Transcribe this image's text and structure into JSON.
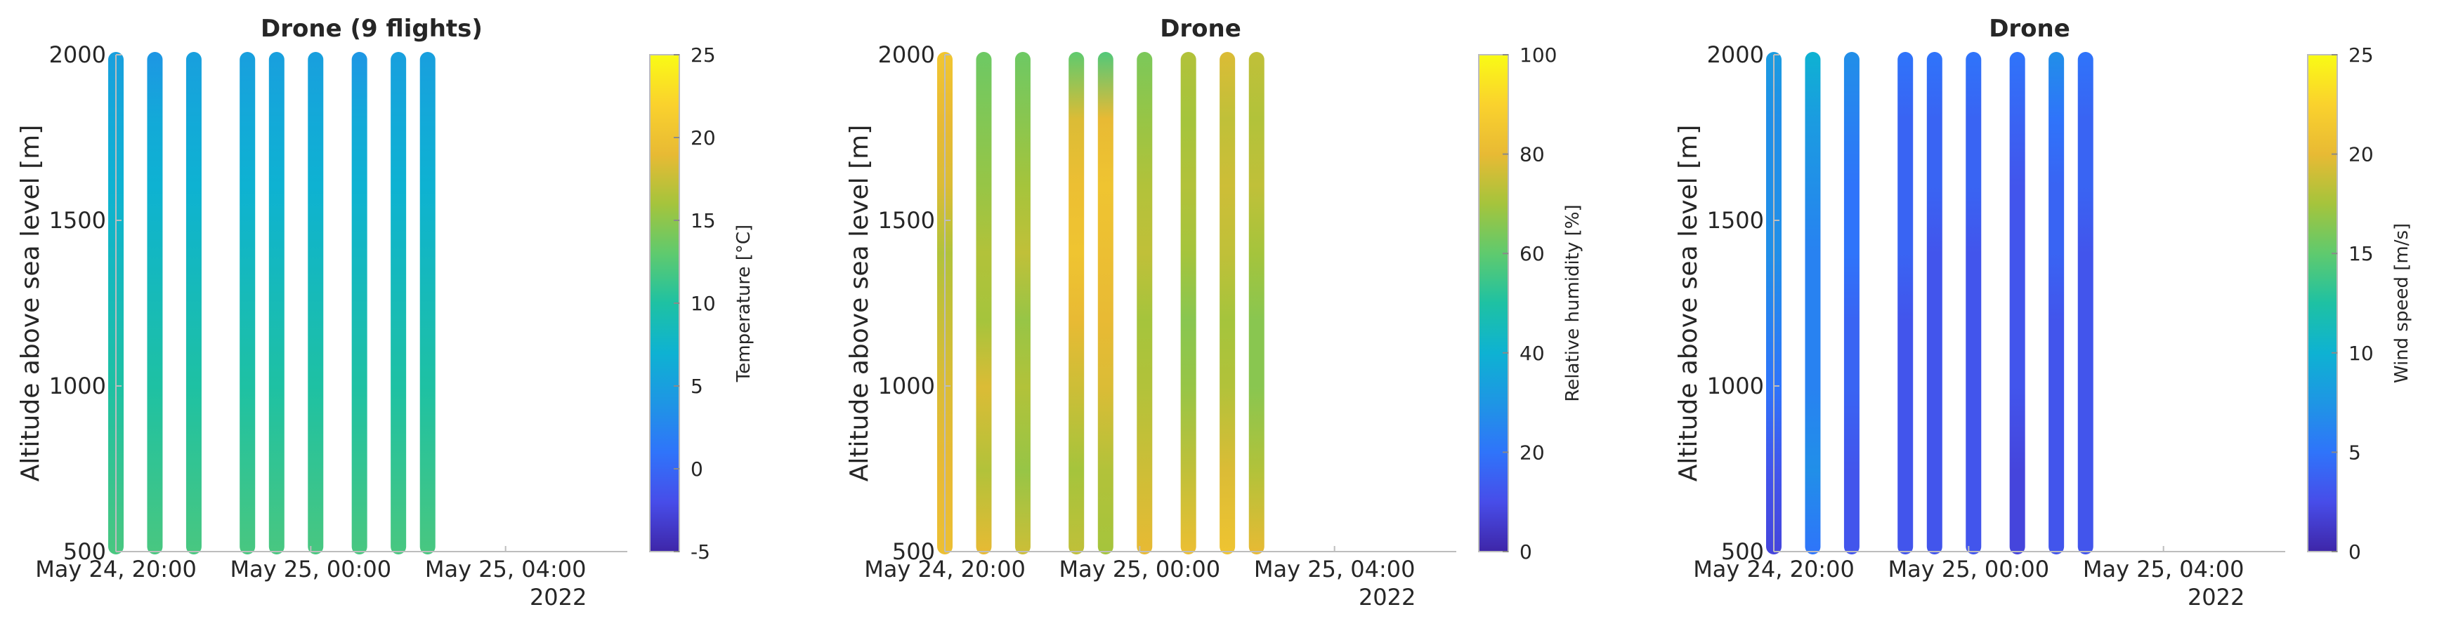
{
  "chart_data": [
    {
      "type": "scatter",
      "title": "Drone (9 flights)",
      "ylabel": "Altitude above sea level [m]",
      "xlabel": "",
      "x_tick_labels": [
        "May 24, 20:00",
        "May 25, 00:00",
        "May 25, 04:00"
      ],
      "x_tick_hours": [
        20,
        24,
        28
      ],
      "x_secondary_label": "2022",
      "xlim_hours": [
        20,
        30.5
      ],
      "ylim": [
        500,
        2000
      ],
      "y_ticks": [
        500,
        1000,
        1500,
        2000
      ],
      "colorbar": {
        "label": "Temperature [°C]",
        "ticks": [
          -5,
          0,
          5,
          10,
          15,
          20,
          25
        ],
        "range": [
          -5,
          25
        ]
      },
      "flight_hours": [
        20.0,
        20.8,
        21.6,
        22.7,
        23.3,
        24.1,
        25.0,
        25.8,
        26.4
      ],
      "series": [
        {
          "values": [
            5,
            6,
            7,
            8,
            9,
            10,
            11,
            12
          ]
        },
        {
          "values": [
            4,
            6,
            7,
            8,
            9,
            10,
            11,
            12
          ]
        },
        {
          "values": [
            5,
            6,
            7,
            8,
            9,
            10,
            11,
            12
          ]
        },
        {
          "values": [
            5,
            6,
            7,
            8,
            9,
            10,
            11,
            12
          ]
        },
        {
          "values": [
            5,
            6,
            7,
            8,
            9,
            10,
            11,
            12
          ]
        },
        {
          "values": [
            5,
            6,
            7,
            8,
            9,
            10,
            11,
            12
          ]
        },
        {
          "values": [
            4,
            6,
            7,
            8,
            9,
            10,
            11,
            12
          ]
        },
        {
          "values": [
            5,
            6,
            7,
            8,
            9,
            10,
            11,
            12
          ]
        },
        {
          "values": [
            5,
            6,
            7,
            8,
            9,
            10,
            11,
            12
          ]
        }
      ],
      "altitude_samples": [
        2000,
        1800,
        1600,
        1400,
        1200,
        1000,
        750,
        500
      ]
    },
    {
      "type": "scatter",
      "title": "Drone",
      "ylabel": "Altitude above sea level [m]",
      "xlabel": "",
      "x_tick_labels": [
        "May 24, 20:00",
        "May 25, 00:00",
        "May 25, 04:00"
      ],
      "x_tick_hours": [
        20,
        24,
        28
      ],
      "x_secondary_label": "2022",
      "xlim_hours": [
        20,
        30.5
      ],
      "ylim": [
        500,
        2000
      ],
      "y_ticks": [
        500,
        1000,
        1500,
        2000
      ],
      "colorbar": {
        "label": "Relative humidity [%]",
        "ticks": [
          0,
          20,
          40,
          60,
          80,
          100
        ],
        "range": [
          0,
          100
        ]
      },
      "flight_hours": [
        20.0,
        20.8,
        21.6,
        22.7,
        23.3,
        24.1,
        25.0,
        25.8,
        26.4
      ],
      "series": [
        {
          "values": [
            85,
            80,
            78,
            72,
            75,
            78,
            80,
            82
          ]
        },
        {
          "values": [
            62,
            65,
            68,
            72,
            70,
            78,
            72,
            80
          ]
        },
        {
          "values": [
            62,
            66,
            70,
            74,
            68,
            72,
            68,
            76
          ]
        },
        {
          "values": [
            60,
            78,
            82,
            84,
            80,
            76,
            70,
            74
          ]
        },
        {
          "values": [
            58,
            80,
            84,
            82,
            80,
            78,
            72,
            70
          ]
        },
        {
          "values": [
            64,
            68,
            72,
            74,
            70,
            72,
            76,
            80
          ]
        },
        {
          "values": [
            72,
            70,
            72,
            70,
            66,
            68,
            74,
            82
          ]
        },
        {
          "values": [
            78,
            74,
            76,
            74,
            70,
            72,
            78,
            84
          ]
        },
        {
          "values": [
            74,
            72,
            74,
            70,
            66,
            66,
            72,
            80
          ]
        }
      ],
      "altitude_samples": [
        2000,
        1800,
        1600,
        1400,
        1200,
        1000,
        750,
        500
      ]
    },
    {
      "type": "scatter",
      "title": "Drone",
      "ylabel": "Altitude above sea level [m]",
      "xlabel": "",
      "x_tick_labels": [
        "May 24, 20:00",
        "May 25, 00:00",
        "May 25, 04:00"
      ],
      "x_tick_hours": [
        20,
        24,
        28
      ],
      "x_secondary_label": "2022",
      "xlim_hours": [
        20,
        30.5
      ],
      "ylim": [
        500,
        2000
      ],
      "y_ticks": [
        500,
        1000,
        1500,
        2000
      ],
      "colorbar": {
        "label": "Wind speed [m/s]",
        "ticks": [
          0,
          5,
          10,
          15,
          20,
          25
        ],
        "range": [
          0,
          25
        ]
      },
      "flight_hours": [
        20.0,
        20.8,
        21.6,
        22.7,
        23.3,
        24.1,
        25.0,
        25.8,
        26.4
      ],
      "series": [
        {
          "values": [
            8,
            7,
            7,
            7,
            6,
            5,
            3,
            2
          ]
        },
        {
          "values": [
            10,
            8,
            7,
            6,
            6,
            6,
            7,
            5
          ]
        },
        {
          "values": [
            7,
            6,
            5,
            5,
            4,
            4,
            3,
            3
          ]
        },
        {
          "values": [
            5,
            4,
            4,
            4,
            3,
            3,
            3,
            3
          ]
        },
        {
          "values": [
            5,
            4,
            4,
            3,
            3,
            3,
            3,
            3
          ]
        },
        {
          "values": [
            5,
            4,
            4,
            3,
            3,
            3,
            3,
            3
          ]
        },
        {
          "values": [
            5,
            4,
            3,
            3,
            3,
            3,
            2,
            2
          ]
        },
        {
          "values": [
            7,
            5,
            4,
            4,
            3,
            3,
            3,
            3
          ]
        },
        {
          "values": [
            5,
            4,
            4,
            3,
            3,
            3,
            3,
            3
          ]
        }
      ],
      "altitude_samples": [
        2000,
        1800,
        1600,
        1400,
        1200,
        1000,
        750,
        500
      ]
    }
  ]
}
